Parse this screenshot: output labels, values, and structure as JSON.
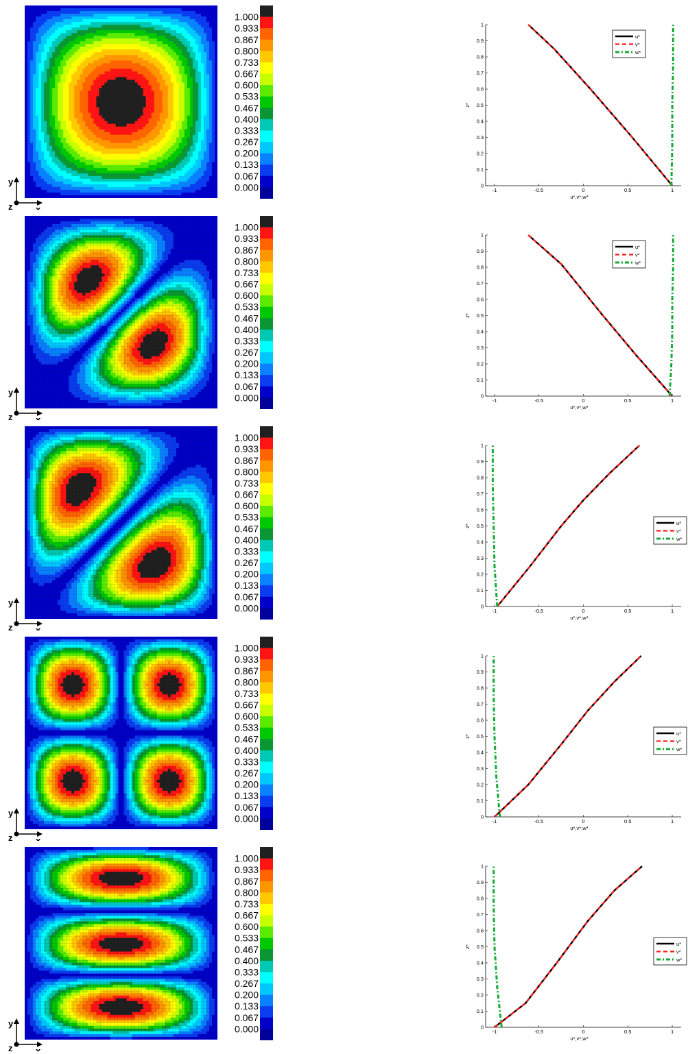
{
  "axis_indicator": {
    "y_label": "y",
    "z_label": "z",
    "x_label": "x"
  },
  "colorbar": {
    "ticks": [
      "1.000",
      "0.933",
      "0.867",
      "0.800",
      "0.733",
      "0.667",
      "0.600",
      "0.533",
      "0.467",
      "0.400",
      "0.333",
      "0.267",
      "0.200",
      "0.133",
      "0.067",
      "0.000"
    ],
    "colors": [
      "#202020",
      "#ff1414",
      "#ff6400",
      "#ff9600",
      "#ffc800",
      "#ffff00",
      "#c8ff00",
      "#5aeb00",
      "#00c800",
      "#0a9632",
      "#00c8b4",
      "#00ffff",
      "#00c8ff",
      "#0a82ff",
      "#0a3cf0",
      "#0000c8",
      "#00009b"
    ]
  },
  "legend": {
    "entries": [
      "u*",
      "v*",
      "w*"
    ]
  },
  "chart_data": [
    {
      "type": "heatmap",
      "mode": "single",
      "legend_position": "top-right",
      "lineplot": {
        "type": "line",
        "xlabel": "u*,v*,w*",
        "ylabel": "z*",
        "xlim": [
          -1.1,
          1.1
        ],
        "ylim": [
          0,
          1
        ],
        "xticks": [
          "-1",
          "-0.5",
          "0",
          "0.5",
          "1"
        ],
        "yticks": [
          "0",
          "0.1",
          "0.2",
          "0.3",
          "0.4",
          "0.5",
          "0.6",
          "0.7",
          "0.8",
          "0.9",
          "1"
        ],
        "series": [
          {
            "name": "u*",
            "x": [
              1,
              0.55,
              0.08,
              -0.33,
              -0.62
            ],
            "y": [
              0,
              0.3,
              0.6,
              0.85,
              1
            ]
          },
          {
            "name": "v*",
            "x": [
              1,
              0.55,
              0.08,
              -0.33,
              -0.62
            ],
            "y": [
              0,
              0.3,
              0.6,
              0.85,
              1
            ]
          },
          {
            "name": "w*",
            "x": [
              0.99,
              1.0,
              1.0,
              1.01,
              1.01
            ],
            "y": [
              0,
              0.25,
              0.5,
              0.75,
              1
            ]
          }
        ]
      }
    },
    {
      "type": "heatmap",
      "mode": "diag2",
      "legend_position": "top-right",
      "lineplot": {
        "type": "line",
        "xlabel": "u*,v*,w*",
        "ylabel": "z*",
        "xlim": [
          -1.1,
          1.1
        ],
        "ylim": [
          0,
          1
        ],
        "xticks": [
          "-1",
          "-0.5",
          "0",
          "0.5",
          "1"
        ],
        "yticks": [
          "0",
          "0.1",
          "0.2",
          "0.3",
          "0.4",
          "0.5",
          "0.6",
          "0.7",
          "0.8",
          "0.9",
          "1"
        ],
        "series": [
          {
            "name": "u*",
            "x": [
              1,
              0.6,
              0.22,
              0.0,
              -0.25,
              -0.62
            ],
            "y": [
              0,
              0.25,
              0.5,
              0.65,
              0.82,
              1
            ]
          },
          {
            "name": "v*",
            "x": [
              1,
              0.6,
              0.22,
              0.0,
              -0.25,
              -0.62
            ],
            "y": [
              0,
              0.25,
              0.5,
              0.65,
              0.82,
              1
            ]
          },
          {
            "name": "w*",
            "x": [
              0.97,
              0.99,
              1.0,
              1.0,
              1.01,
              1.01
            ],
            "y": [
              0,
              0.2,
              0.4,
              0.6,
              0.8,
              1
            ]
          }
        ]
      }
    },
    {
      "type": "heatmap",
      "mode": "diag3",
      "legend_position": "right",
      "lineplot": {
        "type": "line",
        "xlabel": "u*,v*,w*",
        "ylabel": "z*",
        "xlim": [
          -1.1,
          1.1
        ],
        "ylim": [
          0,
          1
        ],
        "xticks": [
          "-1",
          "-0.5",
          "0",
          "0.5",
          "1"
        ],
        "yticks": [
          "0",
          "0.1",
          "0.2",
          "0.3",
          "0.4",
          "0.5",
          "0.6",
          "0.7",
          "0.8",
          "0.9",
          "1"
        ],
        "series": [
          {
            "name": "u*",
            "x": [
              -0.97,
              -0.6,
              -0.25,
              0.0,
              0.3,
              0.63
            ],
            "y": [
              0,
              0.25,
              0.5,
              0.66,
              0.83,
              1
            ]
          },
          {
            "name": "v*",
            "x": [
              -0.97,
              -0.6,
              -0.25,
              0.0,
              0.3,
              0.63
            ],
            "y": [
              0,
              0.25,
              0.5,
              0.66,
              0.83,
              1
            ]
          },
          {
            "name": "w*",
            "x": [
              -0.97,
              -1.0,
              -1.01,
              -1.02,
              -1.02
            ],
            "y": [
              0,
              0.25,
              0.5,
              0.75,
              1
            ]
          }
        ]
      }
    },
    {
      "type": "heatmap",
      "mode": "quad",
      "legend_position": "right",
      "lineplot": {
        "type": "line",
        "xlabel": "u*,v*,w*",
        "ylabel": "z*",
        "xlim": [
          -1.1,
          1.1
        ],
        "ylim": [
          0,
          1
        ],
        "xticks": [
          "-1",
          "-0.5",
          "0",
          "0.5",
          "1"
        ],
        "yticks": [
          "0",
          "0.1",
          "0.2",
          "0.3",
          "0.4",
          "0.5",
          "0.6",
          "0.7",
          "0.8",
          "0.9",
          "1"
        ],
        "series": [
          {
            "name": "u*",
            "x": [
              -1.0,
              -0.62,
              -0.25,
              0.05,
              0.35,
              0.65
            ],
            "y": [
              0,
              0.2,
              0.45,
              0.66,
              0.84,
              1
            ]
          },
          {
            "name": "v*",
            "x": [
              -1.0,
              -0.62,
              -0.25,
              0.05,
              0.35,
              0.65
            ],
            "y": [
              0,
              0.2,
              0.45,
              0.66,
              0.84,
              1
            ]
          },
          {
            "name": "w*",
            "x": [
              -0.94,
              -0.98,
              -1.0,
              -1.01,
              -1.01
            ],
            "y": [
              0,
              0.25,
              0.5,
              0.75,
              1
            ]
          }
        ]
      }
    },
    {
      "type": "heatmap",
      "mode": "bands",
      "legend_position": "right",
      "lineplot": {
        "type": "line",
        "xlabel": "u*,v*,w*",
        "ylabel": "z*",
        "xlim": [
          -1.1,
          1.1
        ],
        "ylim": [
          0,
          1
        ],
        "xticks": [
          "-1",
          "-0.5",
          "0",
          "0.5",
          "1"
        ],
        "yticks": [
          "0",
          "0.1",
          "0.2",
          "0.3",
          "0.4",
          "0.5",
          "0.6",
          "0.7",
          "0.8",
          "0.9",
          "1"
        ],
        "series": [
          {
            "name": "u*",
            "x": [
              -1.0,
              -0.65,
              -0.3,
              0.05,
              0.35,
              0.66
            ],
            "y": [
              0,
              0.15,
              0.4,
              0.66,
              0.85,
              1
            ]
          },
          {
            "name": "v*",
            "x": [
              -1.0,
              -0.65,
              -0.3,
              0.05,
              0.35,
              0.66
            ],
            "y": [
              0,
              0.15,
              0.4,
              0.66,
              0.85,
              1
            ]
          },
          {
            "name": "w*",
            "x": [
              -0.92,
              -0.97,
              -1.0,
              -1.01,
              -1.01
            ],
            "y": [
              0,
              0.25,
              0.5,
              0.75,
              1
            ]
          }
        ]
      }
    }
  ]
}
